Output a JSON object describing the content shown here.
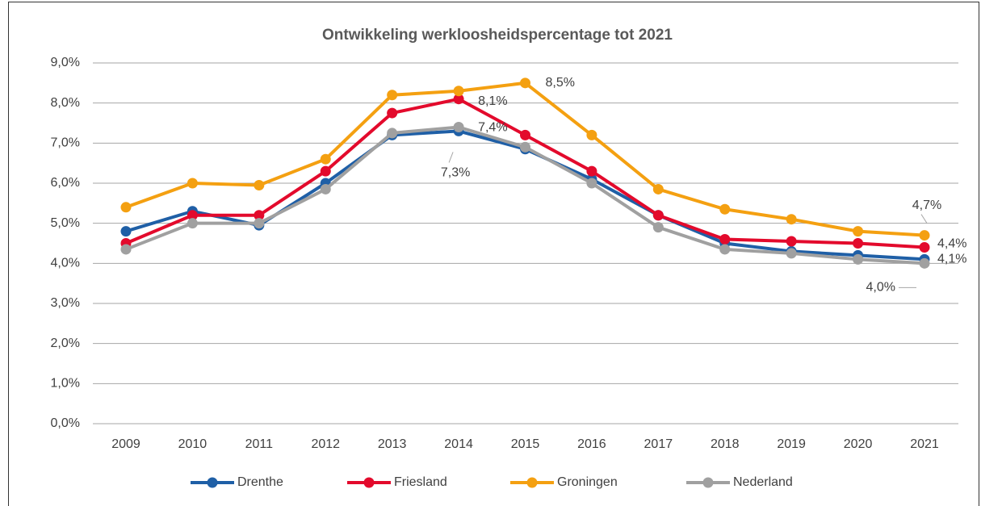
{
  "chart_data": {
    "type": "line",
    "title": "Ontwikkeling werkloosheidspercentage tot 2021",
    "categories": [
      "2009",
      "2010",
      "2011",
      "2012",
      "2013",
      "2014",
      "2015",
      "2016",
      "2017",
      "2018",
      "2019",
      "2020",
      "2021"
    ],
    "series": [
      {
        "name": "Drenthe",
        "color": "#1f5fa6",
        "values": [
          4.8,
          5.3,
          4.95,
          6.0,
          7.2,
          7.3,
          6.85,
          6.1,
          5.2,
          4.5,
          4.3,
          4.2,
          4.1
        ],
        "value_labels": [
          null,
          null,
          null,
          null,
          null,
          "7,3%",
          null,
          null,
          null,
          null,
          null,
          null,
          "4,1%"
        ]
      },
      {
        "name": "Friesland",
        "color": "#e30a2c",
        "values": [
          4.5,
          5.2,
          5.2,
          6.3,
          7.75,
          8.1,
          7.2,
          6.3,
          5.2,
          4.6,
          4.55,
          4.5,
          4.4
        ],
        "value_labels": [
          null,
          null,
          null,
          null,
          null,
          "8,1%",
          null,
          null,
          null,
          null,
          null,
          null,
          "4,4%"
        ]
      },
      {
        "name": "Groningen",
        "color": "#f4a011",
        "values": [
          5.4,
          6.0,
          5.95,
          6.6,
          8.2,
          8.3,
          8.5,
          7.2,
          5.85,
          5.35,
          5.1,
          4.8,
          4.7
        ],
        "value_labels": [
          null,
          null,
          null,
          null,
          null,
          null,
          "8,5%",
          null,
          null,
          null,
          null,
          null,
          "4,7%"
        ]
      },
      {
        "name": "Nederland",
        "color": "#a0a0a0",
        "values": [
          4.35,
          5.0,
          5.0,
          5.85,
          7.25,
          7.4,
          6.9,
          6.0,
          4.9,
          4.35,
          4.25,
          4.1,
          4.0
        ],
        "value_labels": [
          null,
          null,
          null,
          null,
          null,
          "7,4%",
          null,
          null,
          null,
          null,
          null,
          null,
          "4,0%"
        ]
      }
    ],
    "ylim": [
      0,
      9
    ],
    "yticks": [
      {
        "value": 0,
        "label": "0,0%"
      },
      {
        "value": 1,
        "label": "1,0%"
      },
      {
        "value": 2,
        "label": "2,0%"
      },
      {
        "value": 3,
        "label": "3,0%"
      },
      {
        "value": 4,
        "label": "4,0%"
      },
      {
        "value": 5,
        "label": "5,0%"
      },
      {
        "value": 6,
        "label": "6,0%"
      },
      {
        "value": 7,
        "label": "7,0%"
      },
      {
        "value": 8,
        "label": "8,0%"
      },
      {
        "value": 9,
        "label": "9,0%"
      }
    ],
    "grid": true,
    "legend": "bottom"
  }
}
